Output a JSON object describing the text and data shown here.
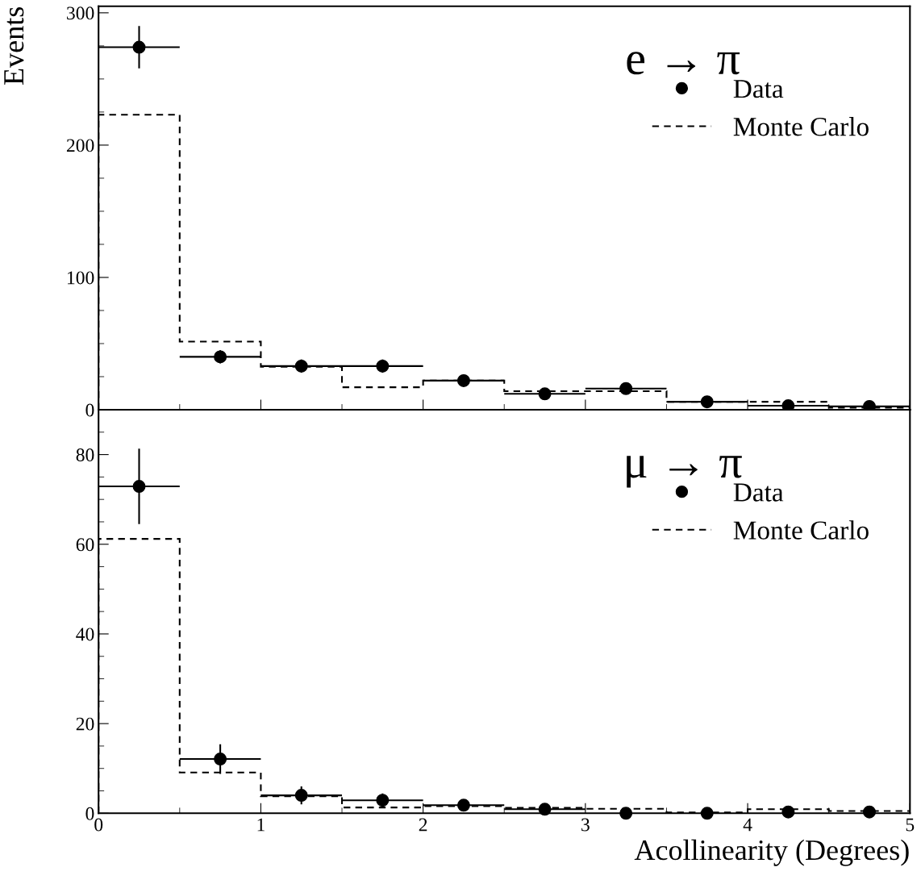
{
  "chart_data": [
    {
      "type": "histogram",
      "ylabel": "Events",
      "annotations": [
        "e → π"
      ],
      "bins": [
        0,
        0.5,
        1,
        1.5,
        2,
        2.5,
        3,
        3.5,
        4,
        4.5,
        5
      ],
      "xlim": [
        0,
        5
      ],
      "xticks": [
        0,
        1,
        2,
        3,
        4,
        5
      ],
      "ylim": [
        0,
        305
      ],
      "yticks": [
        0,
        100,
        200,
        300
      ],
      "tick_labels": "y",
      "legend": "top right",
      "grid": false,
      "series": [
        {
          "name": "Data",
          "type": "scatter",
          "color": "#000000",
          "marker": "circle",
          "x": [
            0.25,
            0.75,
            1.25,
            1.75,
            2.25,
            2.75,
            3.25,
            3.75,
            4.25,
            4.75
          ],
          "values": [
            274,
            40,
            33,
            33,
            22,
            12,
            16,
            6,
            3,
            2.5
          ],
          "errors": [
            16,
            5,
            5,
            5,
            3,
            2,
            3,
            2,
            1.5,
            1.5
          ],
          "xerrors": [
            0.25,
            0.25,
            0.25,
            0.25,
            0.25,
            0.25,
            0.25,
            0.25,
            0.25,
            0.25
          ]
        },
        {
          "name": "Monte Carlo",
          "type": "histogram",
          "color": "#000000",
          "line_style": "dashed",
          "values": [
            223,
            51.5,
            32.5,
            17,
            22,
            14,
            14,
            6,
            6,
            1.5
          ]
        }
      ]
    },
    {
      "type": "histogram",
      "xlabel": "Acollinearity (Degrees)",
      "annotations": [
        "μ → π"
      ],
      "bins": [
        0,
        0.5,
        1,
        1.5,
        2,
        2.5,
        3,
        3.5,
        4,
        4.5,
        5
      ],
      "xlim": [
        0,
        5
      ],
      "xticks": [
        0,
        1,
        2,
        3,
        4,
        5
      ],
      "ylim": [
        0,
        90
      ],
      "yticks": [
        0,
        20,
        40,
        60,
        80
      ],
      "legend": "top right",
      "grid": false,
      "series": [
        {
          "name": "Data",
          "type": "scatter",
          "color": "#000000",
          "marker": "circle",
          "x": [
            0.25,
            0.75,
            1.25,
            1.75,
            2.25,
            2.75,
            3.25,
            3.75,
            4.25,
            4.75
          ],
          "values": [
            72.9,
            12.1,
            4,
            2.9,
            1.8,
            0.9,
            0,
            0,
            0.3,
            0.3
          ],
          "errors": [
            8.4,
            3.3,
            2,
            1.5,
            0.8,
            0.5,
            null,
            null,
            null,
            null
          ],
          "xerrors": [
            0.25,
            0.25,
            0.25,
            0.25,
            0.25,
            0.25,
            null,
            null,
            null,
            null
          ]
        },
        {
          "name": "Monte Carlo",
          "type": "histogram",
          "color": "#000000",
          "line_style": "dashed",
          "values": [
            61.2,
            9.1,
            3.8,
            1.3,
            1.6,
            1.2,
            1,
            0.2,
            0.9,
            0.5
          ]
        }
      ]
    }
  ]
}
